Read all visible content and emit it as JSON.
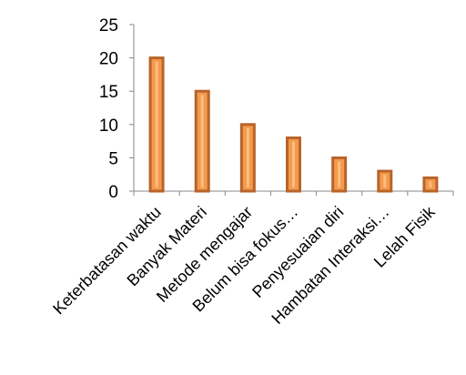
{
  "chart_data": {
    "type": "bar",
    "categories": [
      "Keterbatasan waktu",
      "Banyak Materi",
      "Metode mengajar",
      "Belum bisa fokus…",
      "Penyesuaian diri",
      "Hambatan Interaksi…",
      "Lelah Fisik"
    ],
    "values": [
      20,
      15,
      10,
      8,
      5,
      3,
      2
    ],
    "y_ticks": [
      "0",
      "5",
      "10",
      "15",
      "20",
      "25"
    ],
    "ylim": [
      0,
      25
    ],
    "grid": false,
    "legend": "none",
    "colors": {
      "bar_fill": "#F39A4E",
      "bar_edge": "#B8642A",
      "bar_highlight": "#FFC58A",
      "axis": "#888888"
    }
  }
}
